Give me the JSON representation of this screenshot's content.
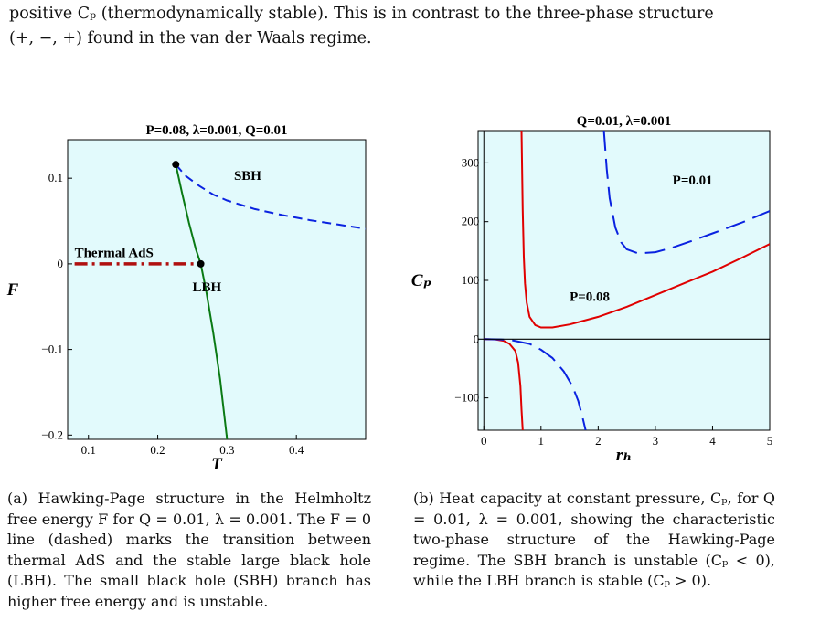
{
  "intro": {
    "line1": "positive Cₚ (thermodynamically stable). This is in contrast to the three-phase structure",
    "line2": "(+, −, +) found in the van der Waals regime."
  },
  "colors": {
    "plot_bg": "#e2fafc",
    "red": "#e00000",
    "blue": "#0a22e0",
    "green": "#0a7a14",
    "darkred": "#b01010",
    "black": "#000000"
  },
  "chart_data": [
    {
      "type": "line",
      "title": "P=0.08, λ=0.001, Q=0.01",
      "xlabel": "T",
      "ylabel": "F",
      "xlim": [
        0.07,
        0.5
      ],
      "ylim": [
        -0.205,
        0.145
      ],
      "x_ticks": [
        0.1,
        0.2,
        0.3,
        0.4
      ],
      "y_ticks": [
        -0.2,
        -0.1,
        0,
        0.1
      ],
      "x_tick_labels": [
        "0.1",
        "0.2",
        "0.3",
        "0.4"
      ],
      "y_tick_labels": [
        "−0.2",
        "−0.1",
        "0",
        "0.1"
      ],
      "annotations": [
        {
          "text": "SBH",
          "x": 0.31,
          "y": 0.098
        },
        {
          "text": "Thermal AdS",
          "x": 0.08,
          "y": 0.008
        },
        {
          "text": "LBH",
          "x": 0.25,
          "y": -0.032
        }
      ],
      "series": [
        {
          "style": "dashed",
          "color": "blue",
          "x": [
            0.226,
            0.24,
            0.26,
            0.28,
            0.3,
            0.34,
            0.38,
            0.42,
            0.46,
            0.5
          ],
          "y": [
            0.116,
            0.103,
            0.091,
            0.081,
            0.074,
            0.064,
            0.057,
            0.051,
            0.046,
            0.041
          ]
        },
        {
          "style": "solid",
          "color": "green",
          "x": [
            0.226,
            0.235,
            0.245,
            0.255,
            0.262,
            0.27,
            0.28,
            0.29,
            0.3
          ],
          "y": [
            0.116,
            0.083,
            0.048,
            0.017,
            0.0,
            -0.032,
            -0.08,
            -0.135,
            -0.205
          ]
        },
        {
          "style": "dashdot",
          "color": "darkred",
          "x": [
            0.08,
            0.262
          ],
          "y": [
            0,
            0
          ]
        }
      ],
      "points": [
        {
          "x": 0.226,
          "y": 0.116
        },
        {
          "x": 0.262,
          "y": 0.0
        }
      ]
    },
    {
      "type": "line",
      "title": "Q=0.01, λ=0.001",
      "xlabel": "rₕ",
      "ylabel": "Cₚ",
      "xlim": [
        -0.1,
        5.0
      ],
      "ylim": [
        -155,
        355
      ],
      "x_ticks": [
        0,
        1,
        2,
        3,
        4,
        5
      ],
      "y_ticks": [
        -100,
        0,
        100,
        200,
        300
      ],
      "x_tick_labels": [
        "0",
        "1",
        "2",
        "3",
        "4",
        "5"
      ],
      "y_tick_labels": [
        "−100",
        "0",
        "100",
        "200",
        "300"
      ],
      "annotations": [
        {
          "text": "P=0.01",
          "x": 3.3,
          "y": 263
        },
        {
          "text": "P=0.08",
          "x": 1.5,
          "y": 65
        }
      ],
      "series": [
        {
          "name": "P=0.08",
          "style": "solid",
          "color": "red",
          "x": [
            0.66,
            0.68,
            0.7,
            0.72,
            0.75,
            0.8,
            0.9,
            1.0,
            1.2,
            1.5,
            2.0,
            2.5,
            3.0,
            3.5,
            4.0,
            4.5,
            5.0
          ],
          "y": [
            355,
            220,
            140,
            95,
            62,
            38,
            24,
            20,
            20,
            25,
            38,
            55,
            75,
            95,
            115,
            138,
            162
          ]
        },
        {
          "name": "P=0.01",
          "style": "longdash",
          "color": "blue",
          "x": [
            2.1,
            2.15,
            2.2,
            2.3,
            2.4,
            2.5,
            2.7,
            3.0,
            3.3,
            3.6,
            4.0,
            4.5,
            5.0
          ],
          "y": [
            355,
            290,
            240,
            190,
            165,
            153,
            146,
            148,
            156,
            166,
            180,
            198,
            218
          ]
        },
        {
          "name": "P=0.08 small",
          "style": "solid",
          "color": "red",
          "x": [
            0.0,
            0.2,
            0.35,
            0.45,
            0.55,
            0.6,
            0.64,
            0.66,
            0.68
          ],
          "y": [
            0,
            -0.4,
            -3,
            -8,
            -20,
            -40,
            -80,
            -120,
            -155
          ]
        },
        {
          "name": "P=0.01 small",
          "style": "longdash",
          "color": "blue",
          "x": [
            0.0,
            0.3,
            0.5,
            0.8,
            1.0,
            1.2,
            1.4,
            1.55,
            1.65,
            1.72,
            1.78
          ],
          "y": [
            0,
            -0.5,
            -2,
            -8,
            -18,
            -32,
            -55,
            -80,
            -105,
            -130,
            -155
          ]
        },
        {
          "name": "zero",
          "style": "solid",
          "color": "black",
          "x": [
            -0.1,
            5.0
          ],
          "y": [
            0,
            0
          ]
        }
      ]
    }
  ],
  "captions": {
    "a": "(a) Hawking-Page structure in the Helmholtz free energy F for Q = 0.01, λ = 0.001. The F = 0 line (dashed) marks the transition between thermal AdS and the stable large black hole (LBH). The small black hole (SBH) branch has higher free energy and is unstable.",
    "b": "(b) Heat capacity at constant pressure, Cₚ, for Q = 0.01, λ = 0.001, showing the characteristic two-phase structure of the Hawking-Page regime. The SBH branch is unstable (Cₚ < 0), while the LBH branch is stable (Cₚ > 0)."
  }
}
